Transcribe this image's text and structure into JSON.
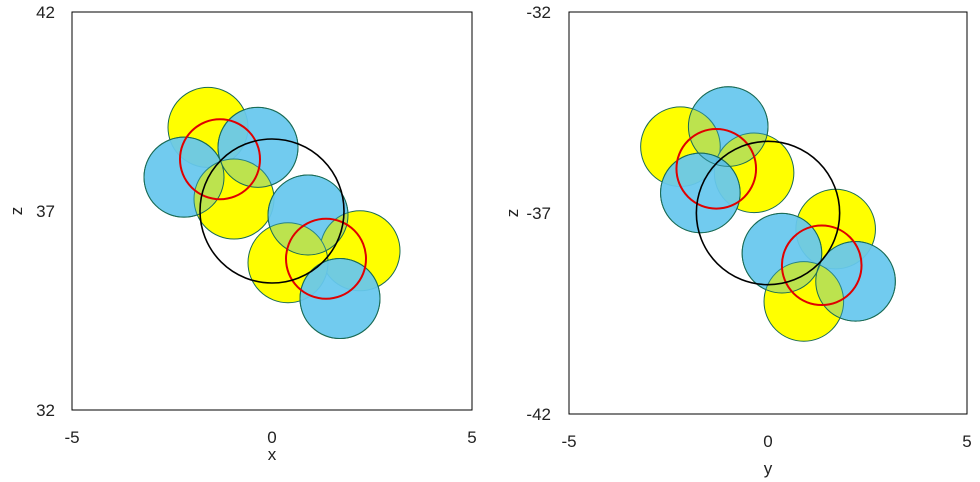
{
  "chart_data": [
    {
      "type": "scatter",
      "title": "",
      "xlabel": "x",
      "ylabel": "z",
      "xlim": [
        -5,
        5
      ],
      "ylim": [
        32,
        42
      ],
      "xticks": [
        "-5",
        "0",
        "5"
      ],
      "yticks": [
        "32",
        "37",
        "42"
      ],
      "grid": false,
      "colors": {
        "yellow": "#ffff00",
        "blue": "#7fd7f7",
        "overlap": "#7fd27f",
        "ring": "#e00000",
        "big": "#000000"
      },
      "circles": [
        {
          "cx": -1.6,
          "cy": 39.1,
          "r": 1.0,
          "fill": "yellow"
        },
        {
          "cx": -0.35,
          "cy": 38.6,
          "r": 1.0,
          "fill": "blue"
        },
        {
          "cx": -2.2,
          "cy": 37.85,
          "r": 1.0,
          "fill": "blue"
        },
        {
          "cx": -0.95,
          "cy": 37.3,
          "r": 1.0,
          "fill": "yellow"
        },
        {
          "cx": 0.9,
          "cy": 36.9,
          "r": 1.0,
          "fill": "blue"
        },
        {
          "cx": 2.2,
          "cy": 36.0,
          "r": 1.0,
          "fill": "yellow"
        },
        {
          "cx": 0.4,
          "cy": 35.7,
          "r": 1.0,
          "fill": "yellow"
        },
        {
          "cx": 1.7,
          "cy": 34.8,
          "r": 1.0,
          "fill": "blue"
        }
      ],
      "rings": [
        {
          "cx": -1.3,
          "cy": 38.3,
          "r": 1.0,
          "stroke": "ring"
        },
        {
          "cx": 1.35,
          "cy": 35.8,
          "r": 1.0,
          "stroke": "ring"
        },
        {
          "cx": 0.0,
          "cy": 37.0,
          "r": 1.8,
          "stroke": "big"
        }
      ]
    },
    {
      "type": "scatter",
      "title": "",
      "xlabel": "y",
      "ylabel": "z",
      "xlim": [
        -5,
        5
      ],
      "ylim": [
        -42,
        -32
      ],
      "xticks": [
        "-5",
        "0",
        "5"
      ],
      "yticks": [
        "-42",
        "-37",
        "-32"
      ],
      "grid": false,
      "colors": {
        "yellow": "#ffff00",
        "blue": "#7fd7f7",
        "overlap": "#7fd27f",
        "ring": "#e00000",
        "big": "#000000"
      },
      "circles": [
        {
          "cx": -1.0,
          "cy": -34.85,
          "r": 1.0,
          "fill": "blue"
        },
        {
          "cx": -2.2,
          "cy": -35.35,
          "r": 1.0,
          "fill": "yellow"
        },
        {
          "cx": -0.35,
          "cy": -36.0,
          "r": 1.0,
          "fill": "yellow"
        },
        {
          "cx": -1.7,
          "cy": -36.5,
          "r": 1.0,
          "fill": "blue"
        },
        {
          "cx": 1.7,
          "cy": -37.4,
          "r": 1.0,
          "fill": "yellow"
        },
        {
          "cx": 0.35,
          "cy": -38.0,
          "r": 1.0,
          "fill": "blue"
        },
        {
          "cx": 2.2,
          "cy": -38.7,
          "r": 1.0,
          "fill": "blue"
        },
        {
          "cx": 0.9,
          "cy": -39.2,
          "r": 1.0,
          "fill": "yellow"
        }
      ],
      "rings": [
        {
          "cx": -1.3,
          "cy": -35.9,
          "r": 1.0,
          "stroke": "ring"
        },
        {
          "cx": 1.35,
          "cy": -38.3,
          "r": 1.0,
          "stroke": "ring"
        },
        {
          "cx": 0.0,
          "cy": -37.0,
          "r": 1.8,
          "stroke": "big"
        }
      ]
    }
  ]
}
